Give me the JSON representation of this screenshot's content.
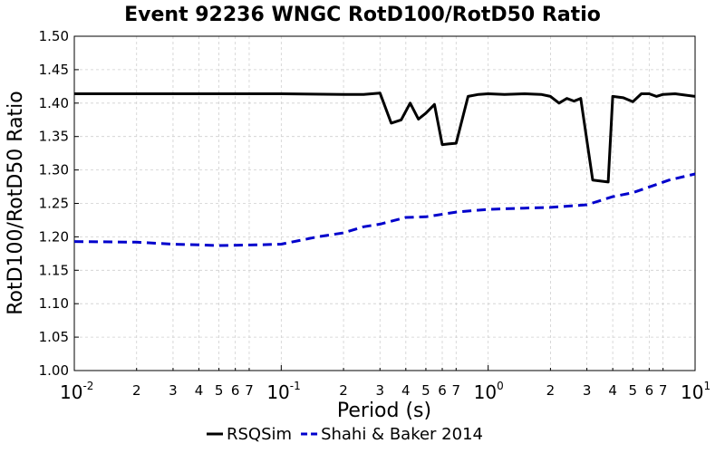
{
  "chart_data": {
    "type": "line",
    "title": "Event 92236 WNGC RotD100/RotD50 Ratio",
    "xlabel": "Period (s)",
    "ylabel": "RotD100/RotD50 Ratio",
    "xscale": "log",
    "xlim": [
      0.01,
      10
    ],
    "ylim": [
      1.0,
      1.5
    ],
    "yticks": [
      "1.00",
      "1.05",
      "1.10",
      "1.15",
      "1.20",
      "1.25",
      "1.30",
      "1.35",
      "1.40",
      "1.45",
      "1.50"
    ],
    "xticks_major": [
      {
        "base": "10",
        "exp": "-2"
      },
      {
        "base": "10",
        "exp": "-1"
      },
      {
        "base": "10",
        "exp": "0"
      },
      {
        "base": "10",
        "exp": "1"
      }
    ],
    "xticks_minor": [
      "2",
      "3",
      "4",
      "5",
      "6",
      "7"
    ],
    "grid": true,
    "legend_position": "bottom-center",
    "series": [
      {
        "name": "RSQSim",
        "color": "#000000",
        "style": "solid",
        "x": [
          0.01,
          0.02,
          0.03,
          0.05,
          0.1,
          0.2,
          0.25,
          0.3,
          0.34,
          0.38,
          0.42,
          0.46,
          0.5,
          0.55,
          0.6,
          0.65,
          0.7,
          0.8,
          0.9,
          1.0,
          1.2,
          1.5,
          1.8,
          2.0,
          2.2,
          2.4,
          2.6,
          2.8,
          3.2,
          3.8,
          4.0,
          4.5,
          5.0,
          5.5,
          6.0,
          6.5,
          7.0,
          8.0,
          10.0
        ],
        "y": [
          1.414,
          1.414,
          1.414,
          1.414,
          1.414,
          1.413,
          1.413,
          1.415,
          1.37,
          1.375,
          1.4,
          1.376,
          1.385,
          1.398,
          1.338,
          1.339,
          1.34,
          1.41,
          1.413,
          1.414,
          1.413,
          1.414,
          1.413,
          1.41,
          1.4,
          1.407,
          1.403,
          1.407,
          1.285,
          1.282,
          1.41,
          1.408,
          1.402,
          1.414,
          1.414,
          1.41,
          1.413,
          1.414,
          1.41
        ]
      },
      {
        "name": "Shahi & Baker 2014",
        "color": "#0000cc",
        "style": "dashed",
        "x": [
          0.01,
          0.02,
          0.03,
          0.04,
          0.05,
          0.075,
          0.1,
          0.15,
          0.2,
          0.25,
          0.3,
          0.4,
          0.5,
          0.7,
          1.0,
          1.5,
          2.0,
          3.0,
          4.0,
          5.0,
          7.5,
          10.0
        ],
        "y": [
          1.193,
          1.192,
          1.189,
          1.188,
          1.187,
          1.188,
          1.189,
          1.2,
          1.206,
          1.215,
          1.219,
          1.229,
          1.23,
          1.237,
          1.241,
          1.243,
          1.244,
          1.248,
          1.26,
          1.266,
          1.285,
          1.294
        ]
      }
    ]
  }
}
